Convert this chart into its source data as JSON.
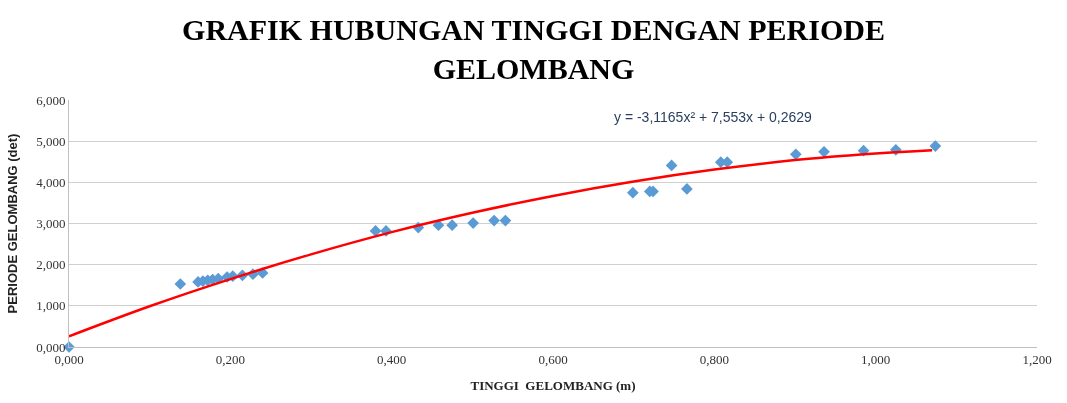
{
  "chart_data": {
    "type": "scatter",
    "title": "GRAFIK HUBUNGAN TINGGI DENGAN PERIODE GELOMBANG",
    "xlabel": "TINGGI  GELOMBANG (m)",
    "ylabel": "PERIODE GELOMBANG (det)",
    "xlim": [
      0,
      1.2
    ],
    "ylim": [
      0,
      6
    ],
    "xticks": [
      {
        "value": 0,
        "label": "0,000"
      },
      {
        "value": 0.2,
        "label": "0,200"
      },
      {
        "value": 0.4,
        "label": "0,400"
      },
      {
        "value": 0.6,
        "label": "0,600"
      },
      {
        "value": 0.8,
        "label": "0,800"
      },
      {
        "value": 1.0,
        "label": "1,000"
      },
      {
        "value": 1.2,
        "label": "1,200"
      }
    ],
    "yticks": [
      {
        "value": 0,
        "label": "0,000"
      },
      {
        "value": 1,
        "label": "1,000"
      },
      {
        "value": 2,
        "label": "2,000"
      },
      {
        "value": 3,
        "label": "3,000"
      },
      {
        "value": 4,
        "label": "4,000"
      },
      {
        "value": 5,
        "label": "5,000"
      },
      {
        "value": 6,
        "label": "6,000"
      }
    ],
    "grid": "y",
    "annotations": [
      "y = -3,1165x² + 7,553x + 0,2629"
    ],
    "series": [
      {
        "marker": "diamond",
        "color": "#5b9bd5",
        "x": [
          0,
          0.138,
          0.16,
          0.166,
          0.172,
          0.178,
          0.185,
          0.196,
          0.203,
          0.215,
          0.228,
          0.24,
          0.38,
          0.393,
          0.433,
          0.458,
          0.475,
          0.501,
          0.527,
          0.541,
          0.699,
          0.72,
          0.724,
          0.747,
          0.766,
          0.808,
          0.816,
          0.901,
          0.936,
          0.985,
          1.025,
          1.074
        ],
        "values": [
          0,
          1.53,
          1.58,
          1.6,
          1.62,
          1.64,
          1.66,
          1.7,
          1.72,
          1.74,
          1.77,
          1.8,
          2.82,
          2.82,
          2.9,
          2.96,
          2.96,
          3.01,
          3.07,
          3.07,
          3.75,
          3.78,
          3.78,
          4.41,
          3.84,
          4.49,
          4.49,
          4.68,
          4.74,
          4.77,
          4.79,
          4.88
        ]
      },
      {
        "type": "line",
        "marker": "none",
        "line_style": "solid",
        "color": "#ff0000",
        "x": [
          0,
          0.1,
          0.2,
          0.3,
          0.4,
          0.5,
          0.6,
          0.7,
          0.8,
          0.9,
          1.0,
          1.07
        ],
        "values": [
          0.26,
          0.99,
          1.65,
          2.25,
          2.79,
          3.26,
          3.67,
          4.02,
          4.31,
          4.54,
          4.7,
          4.78
        ]
      }
    ]
  }
}
